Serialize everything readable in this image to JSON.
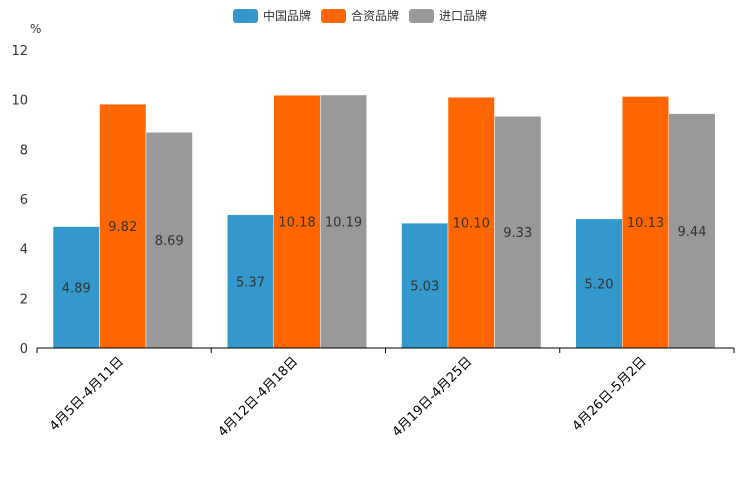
{
  "chart_data": {
    "type": "bar",
    "unit": "%",
    "categories": [
      "4月5日-4月11日",
      "4月12日-4月18日",
      "4月19日-4月25日",
      "4月26日-5月2日"
    ],
    "series": [
      {
        "name": "中国品牌",
        "color": "#3398cc",
        "values": [
          4.89,
          5.37,
          5.03,
          5.2
        ],
        "labels": [
          "4.89",
          "5.37",
          "5.03",
          "5.20"
        ]
      },
      {
        "name": "合资品牌",
        "color": "#ff6600",
        "values": [
          9.82,
          10.18,
          10.1,
          10.13
        ],
        "labels": [
          "9.82",
          "10.18",
          "10.10",
          "10.13"
        ]
      },
      {
        "name": "进口品牌",
        "color": "#999999",
        "values": [
          8.69,
          10.19,
          9.33,
          9.44
        ],
        "labels": [
          "8.69",
          "10.19",
          "9.33",
          "9.44"
        ]
      }
    ],
    "ylim": [
      0,
      12
    ],
    "yticks": [
      "0",
      "2",
      "4",
      "6",
      "8",
      "10",
      "12"
    ],
    "legend_position": "top-center",
    "grid": false
  }
}
